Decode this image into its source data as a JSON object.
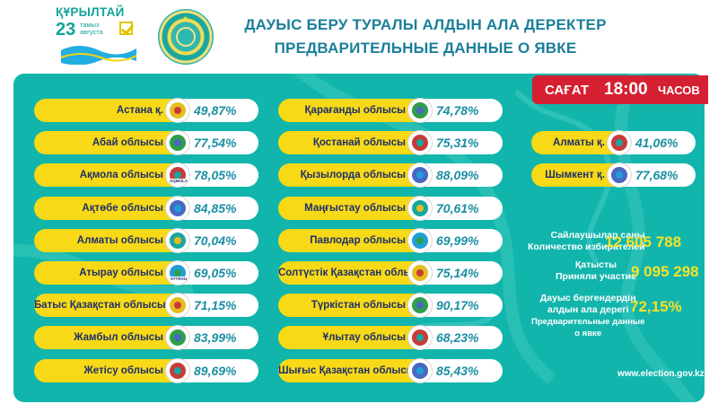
{
  "header": {
    "logo_word": "ҚҰРЫЛТАЙ",
    "logo_day": "23",
    "logo_month_kz": "тамыз",
    "logo_month_ru": "августа",
    "title_kz": "ДАУЫС БЕРУ ТУРАЛЫ АЛДЫН АЛА ДЕРЕКТЕР",
    "title_ru": "ПРЕДВАРИТЕЛЬНЫЕ ДАННЫЕ О ЯВКЕ"
  },
  "time_badge": {
    "prefix": "САҒАТ",
    "time": "18:00",
    "suffix": "ЧАСОВ"
  },
  "colors": {
    "panel": "#11b5ac",
    "label_bg": "#f7d917",
    "label_text": "#1e2f6b",
    "value_text": "#1a8fa3",
    "badge": "#d42031",
    "stat_value": "#f7e228"
  },
  "regions_col1": [
    {
      "name": "Астана қ.",
      "value": "49,87%",
      "emblem": "astana-emblem"
    },
    {
      "name": "Абай облысы",
      "value": "77,54%",
      "emblem": "abai-emblem"
    },
    {
      "name": "Ақмола облысы",
      "value": "78,05%",
      "emblem": "aqmola-emblem",
      "emblem_text": "AQMOLA"
    },
    {
      "name": "Ақтөбе облысы",
      "value": "84,85%",
      "emblem": "aktobe-emblem"
    },
    {
      "name": "Алматы облысы",
      "value": "70,04%",
      "emblem": "almaty-region-emblem"
    },
    {
      "name": "Атырау облысы",
      "value": "69,05%",
      "emblem": "atyrau-emblem",
      "emblem_text": "ATYRAU"
    },
    {
      "name": "Батыс Қазақстан облысы",
      "value": "71,15%",
      "emblem": "west-kz-emblem"
    },
    {
      "name": "Жамбыл облысы",
      "value": "83,99%",
      "emblem": "zhambyl-emblem"
    },
    {
      "name": "Жетісу облысы",
      "value": "89,69%",
      "emblem": "zhetisu-emblem"
    }
  ],
  "regions_col2": [
    {
      "name": "Қарағанды облысы",
      "value": "74,78%",
      "emblem": "karaganda-emblem"
    },
    {
      "name": "Қостанай облысы",
      "value": "75,31%",
      "emblem": "kostanay-emblem"
    },
    {
      "name": "Қызылорда облысы",
      "value": "88,09%",
      "emblem": "kyzylorda-emblem"
    },
    {
      "name": "Маңғыстау облысы",
      "value": "70,61%",
      "emblem": "mangystau-emblem"
    },
    {
      "name": "Павлодар облысы",
      "value": "69,99%",
      "emblem": "pavlodar-emblem"
    },
    {
      "name": "Солтүстік Қазақстан облысы",
      "value": "75,14%",
      "emblem": "north-kz-emblem"
    },
    {
      "name": "Түркістан облысы",
      "value": "90,17%",
      "emblem": "turkistan-emblem"
    },
    {
      "name": "Ұлытау облысы",
      "value": "68,23%",
      "emblem": "ulytau-emblem"
    },
    {
      "name": "Шығыс Қазақстан облысы",
      "value": "85,43%",
      "emblem": "east-kz-emblem"
    }
  ],
  "regions_col3": [
    {
      "name": "Алматы қ.",
      "value": "41,06%",
      "emblem": "almaty-city-emblem"
    },
    {
      "name": "Шымкент қ.",
      "value": "77,68%",
      "emblem": "shymkent-emblem"
    }
  ],
  "stats": {
    "voters_label_kz": "Сайлаушылар саны",
    "voters_label_ru": "Количество избирателей",
    "voters_value": "12 605 788",
    "participated_label_kz": "Қатысты",
    "participated_label_ru": "Приняли участие",
    "participated_value": "9 095 298",
    "turnout_label_kz1": "Дауыс бергендердің",
    "turnout_label_kz2": "алдын ала дерегі",
    "turnout_label_ru1": "Предварительные данные",
    "turnout_label_ru2": "о явке",
    "turnout_value": "72,15%"
  },
  "website": "www.election.gov.kz"
}
